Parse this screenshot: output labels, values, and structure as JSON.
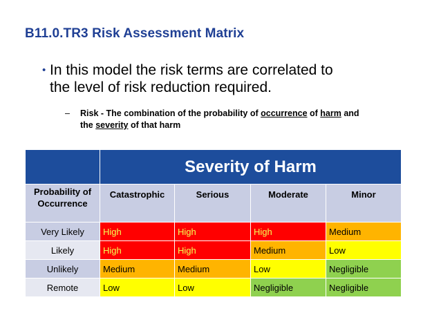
{
  "title": "B11.0.TR3 Risk Assessment Matrix",
  "bullet": {
    "line1": "In this model the risk terms are correlated to",
    "line2": "the level of risk reduction required."
  },
  "sub": {
    "part1": "Risk - The combination of the probability of ",
    "occurrence": "occurrence",
    "part2": " of ",
    "harm": "harm",
    "part3": " and",
    "part4": "the ",
    "severity": "severity",
    "part5": " of that harm"
  },
  "table": {
    "severity_header": "Severity of Harm",
    "probability_header": "Probability of Occurrence",
    "columns": [
      "Catastrophic",
      "Serious",
      "Moderate",
      "Minor"
    ],
    "rows": [
      {
        "label": "Very Likely",
        "cells": [
          "High",
          "High",
          "High",
          "Medium"
        ]
      },
      {
        "label": "Likely",
        "cells": [
          "High",
          "High",
          "Medium",
          "Low"
        ]
      },
      {
        "label": "Unlikely",
        "cells": [
          "Medium",
          "Medium",
          "Low",
          "Negligible"
        ]
      },
      {
        "label": "Remote",
        "cells": [
          "Low",
          "Low",
          "Negligible",
          "Negligible"
        ]
      }
    ]
  },
  "colors": {
    "title": "#1f3f94",
    "header": "#1d4d9c",
    "high": "#ff0000",
    "medium": "#ffb400",
    "low": "#ffff00",
    "negligible": "#8fd14f"
  }
}
